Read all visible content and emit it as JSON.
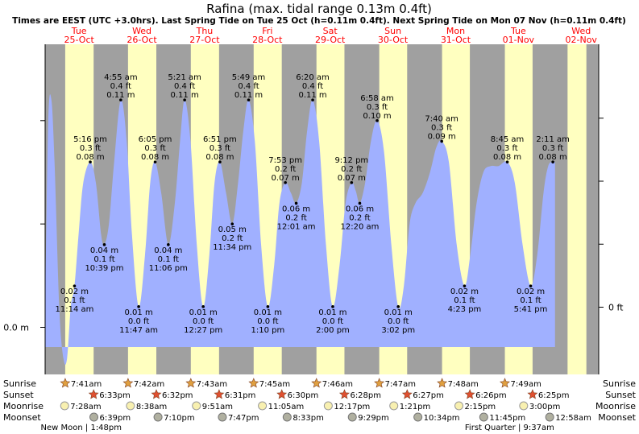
{
  "title": "Rafina (max. tidal range 0.13m 0.4ft)",
  "subtitle": "Times are EEST (UTC +3.0hrs). Last Spring Tide on Tue 25 Oct (h=0.11m 0.4ft). Next Spring Tide on Mon 07 Nov (h=0.11m 0.4ft)",
  "colors": {
    "day": "#ffffc0",
    "night": "#a0a0a0",
    "water": "#a0b0ff",
    "date": "#ff0000",
    "sun": "#e0a040",
    "sunset": "#e05030",
    "moon": "#f8f0b0",
    "moonset": "#b0b0a0"
  },
  "days": [
    {
      "dow": "Tue",
      "date": "25-Oct"
    },
    {
      "dow": "Wed",
      "date": "26-Oct"
    },
    {
      "dow": "Thu",
      "date": "27-Oct"
    },
    {
      "dow": "Fri",
      "date": "28-Oct"
    },
    {
      "dow": "Sat",
      "date": "29-Oct"
    },
    {
      "dow": "Sun",
      "date": "30-Oct"
    },
    {
      "dow": "Mon",
      "date": "31-Oct"
    },
    {
      "dow": "Tue",
      "date": "01-Nov"
    },
    {
      "dow": "Wed",
      "date": "02-Nov"
    }
  ],
  "axis": {
    "left_label": "0.0 m",
    "right_label": "0 ft"
  },
  "chart_data": {
    "type": "area",
    "title": "Rafina (max. tidal range 0.13m 0.4ft)",
    "x_unit": "hours since 00:00 Tue 25 Oct (EEST)",
    "y_unit": "m",
    "ylim": [
      -0.015,
      0.13
    ],
    "extremes": [
      {
        "t": 11.23,
        "type": "low",
        "time": "11:14 am",
        "m": "0.02 m",
        "ft": "0.1 ft",
        "h": 0.02
      },
      {
        "t": 17.27,
        "type": "high",
        "time": "5:16 pm",
        "m": "0.08 m",
        "ft": "0.3 ft",
        "h": 0.08
      },
      {
        "t": 22.65,
        "type": "low",
        "time": "10:39 pm",
        "m": "0.04 m",
        "ft": "0.1 ft",
        "h": 0.04
      },
      {
        "t": 28.92,
        "type": "high",
        "time": "4:55 am",
        "m": "0.11 m",
        "ft": "0.4 ft",
        "h": 0.11
      },
      {
        "t": 35.78,
        "type": "low",
        "time": "11:47 am",
        "m": "0.01 m",
        "ft": "0.0 ft",
        "h": 0.01
      },
      {
        "t": 42.08,
        "type": "high",
        "time": "6:05 pm",
        "m": "0.08 m",
        "ft": "0.3 ft",
        "h": 0.08
      },
      {
        "t": 47.1,
        "type": "low",
        "time": "11:06 pm",
        "m": "0.04 m",
        "ft": "0.1 ft",
        "h": 0.04
      },
      {
        "t": 53.35,
        "type": "high",
        "time": "5:21 am",
        "m": "0.11 m",
        "ft": "0.4 ft",
        "h": 0.11
      },
      {
        "t": 60.45,
        "type": "low",
        "time": "12:27 pm",
        "m": "0.01 m",
        "ft": "0.0 ft",
        "h": 0.01
      },
      {
        "t": 66.85,
        "type": "high",
        "time": "6:51 pm",
        "m": "0.08 m",
        "ft": "0.3 ft",
        "h": 0.08
      },
      {
        "t": 71.57,
        "type": "low",
        "time": "11:34 pm",
        "m": "0.05 m",
        "ft": "0.2 ft",
        "h": 0.05
      },
      {
        "t": 77.82,
        "type": "high",
        "time": "5:49 am",
        "m": "0.11 m",
        "ft": "0.4 ft",
        "h": 0.11
      },
      {
        "t": 85.17,
        "type": "low",
        "time": "1:10 pm",
        "m": "0.01 m",
        "ft": "0.0 ft",
        "h": 0.01
      },
      {
        "t": 91.88,
        "type": "high",
        "time": "7:53 pm",
        "m": "0.07 m",
        "ft": "0.2 ft",
        "h": 0.07
      },
      {
        "t": 96.02,
        "type": "low",
        "time": "12:01 am",
        "m": "0.06 m",
        "ft": "0.2 ft",
        "h": 0.06
      },
      {
        "t": 102.33,
        "type": "high",
        "time": "6:20 am",
        "m": "0.11 m",
        "ft": "0.4 ft",
        "h": 0.11
      },
      {
        "t": 110.0,
        "type": "low",
        "time": "2:00 pm",
        "m": "0.01 m",
        "ft": "0.0 ft",
        "h": 0.01
      },
      {
        "t": 117.2,
        "type": "high",
        "time": "9:12 pm",
        "m": "0.07 m",
        "ft": "0.2 ft",
        "h": 0.07
      },
      {
        "t": 120.33,
        "type": "low",
        "time": "12:20 am",
        "m": "0.06 m",
        "ft": "0.2 ft",
        "h": 0.06
      },
      {
        "t": 126.97,
        "type": "high",
        "time": "6:58 am",
        "m": "0.10 m",
        "ft": "0.3 ft",
        "h": 0.1
      },
      {
        "t": 135.05,
        "type": "low",
        "time": "3:02 pm",
        "m": "0.01 m",
        "ft": "0.0 ft",
        "h": 0.01
      },
      {
        "t": 151.67,
        "type": "high",
        "time": "7:40 am",
        "m": "0.09 m",
        "ft": "0.3 ft",
        "h": 0.09
      },
      {
        "t": 160.38,
        "type": "low",
        "time": "4:23 pm",
        "m": "0.02 m",
        "ft": "0.1 ft",
        "h": 0.02
      },
      {
        "t": 176.75,
        "type": "high",
        "time": "8:45 am",
        "m": "0.08 m",
        "ft": "0.3 ft",
        "h": 0.08
      },
      {
        "t": 185.68,
        "type": "low",
        "time": "5:41 pm",
        "m": "0.02 m",
        "ft": "0.1 ft",
        "h": 0.02
      },
      {
        "t": 194.18,
        "type": "high",
        "time": "2:11 am",
        "m": "0.08 m",
        "ft": "0.3 ft",
        "h": 0.08
      }
    ],
    "curve": [
      [
        0,
        0.01
      ],
      [
        1.2,
        0.1
      ],
      [
        2.4,
        0.11
      ],
      [
        3.6,
        0.08
      ],
      [
        5.4,
        0.01
      ],
      [
        7.0,
        -0.015
      ],
      [
        8.4,
        -0.015
      ],
      [
        9.8,
        0.01
      ],
      [
        11.23,
        0.02
      ],
      [
        12.8,
        0.045
      ],
      [
        14.6,
        0.07
      ],
      [
        17.27,
        0.08
      ],
      [
        19.4,
        0.07
      ],
      [
        21.4,
        0.045
      ],
      [
        22.65,
        0.04
      ],
      [
        24.4,
        0.05
      ],
      [
        26.4,
        0.08
      ],
      [
        28.92,
        0.11
      ],
      [
        31.2,
        0.09
      ],
      [
        33.2,
        0.045
      ],
      [
        35.78,
        0.01
      ],
      [
        38.2,
        0.035
      ],
      [
        40.2,
        0.07
      ],
      [
        42.08,
        0.08
      ],
      [
        44.4,
        0.065
      ],
      [
        47.1,
        0.04
      ],
      [
        49.6,
        0.06
      ],
      [
        51.6,
        0.09
      ],
      [
        53.35,
        0.11
      ],
      [
        55.6,
        0.09
      ],
      [
        58.0,
        0.04
      ],
      [
        60.45,
        0.01
      ],
      [
        62.8,
        0.035
      ],
      [
        64.8,
        0.07
      ],
      [
        66.85,
        0.08
      ],
      [
        69.2,
        0.065
      ],
      [
        71.57,
        0.05
      ],
      [
        73.8,
        0.07
      ],
      [
        75.8,
        0.095
      ],
      [
        77.82,
        0.11
      ],
      [
        80.2,
        0.09
      ],
      [
        82.6,
        0.04
      ],
      [
        85.17,
        0.01
      ],
      [
        87.6,
        0.03
      ],
      [
        89.6,
        0.06
      ],
      [
        91.88,
        0.07
      ],
      [
        94.0,
        0.065
      ],
      [
        96.02,
        0.06
      ],
      [
        98.2,
        0.07
      ],
      [
        100.2,
        0.095
      ],
      [
        102.33,
        0.11
      ],
      [
        104.8,
        0.09
      ],
      [
        107.4,
        0.04
      ],
      [
        110.0,
        0.01
      ],
      [
        112.6,
        0.03
      ],
      [
        114.9,
        0.06
      ],
      [
        117.2,
        0.07
      ],
      [
        118.8,
        0.066
      ],
      [
        120.33,
        0.06
      ],
      [
        122.4,
        0.07
      ],
      [
        124.6,
        0.09
      ],
      [
        126.97,
        0.1
      ],
      [
        129.6,
        0.085
      ],
      [
        132.4,
        0.04
      ],
      [
        135.05,
        0.01
      ],
      [
        137.2,
        0.02
      ],
      [
        139.4,
        0.05
      ],
      [
        141.6,
        0.06
      ],
      [
        144.4,
        0.065
      ],
      [
        147.2,
        0.075
      ],
      [
        149.6,
        0.087
      ],
      [
        151.67,
        0.09
      ],
      [
        154.4,
        0.08
      ],
      [
        157.4,
        0.04
      ],
      [
        160.38,
        0.02
      ],
      [
        162.6,
        0.035
      ],
      [
        165.0,
        0.06
      ],
      [
        167.6,
        0.075
      ],
      [
        170.4,
        0.078
      ],
      [
        173.4,
        0.078
      ],
      [
        176.75,
        0.08
      ],
      [
        179.6,
        0.07
      ],
      [
        182.6,
        0.04
      ],
      [
        185.68,
        0.02
      ],
      [
        188.2,
        0.035
      ],
      [
        190.6,
        0.065
      ],
      [
        192.4,
        0.078
      ],
      [
        194.18,
        0.08
      ],
      [
        195.0,
        0.08
      ]
    ],
    "day_hours": [
      [
        7.68,
        18.55
      ],
      [
        31.7,
        42.53
      ],
      [
        55.72,
        66.52
      ],
      [
        79.75,
        90.5
      ],
      [
        103.77,
        114.47
      ],
      [
        127.78,
        138.45
      ],
      [
        151.8,
        162.43
      ],
      [
        175.82,
        186.42
      ],
      [
        199.8,
        207
      ]
    ]
  },
  "astro": {
    "labels": {
      "sunrise": "Sunrise",
      "sunset": "Sunset",
      "moonrise": "Moonrise",
      "moonset": "Moonset"
    },
    "sunrise": [
      {
        "t": 7.68,
        "text": "7:41am"
      },
      {
        "t": 31.7,
        "text": "7:42am"
      },
      {
        "t": 55.72,
        "text": "7:43am"
      },
      {
        "t": 79.75,
        "text": "7:45am"
      },
      {
        "t": 103.77,
        "text": "7:46am"
      },
      {
        "t": 127.78,
        "text": "7:47am"
      },
      {
        "t": 151.8,
        "text": "7:48am"
      },
      {
        "t": 175.82,
        "text": "7:49am"
      }
    ],
    "sunset": [
      {
        "t": 18.55,
        "text": "6:33pm"
      },
      {
        "t": 42.53,
        "text": "6:32pm"
      },
      {
        "t": 66.52,
        "text": "6:31pm"
      },
      {
        "t": 90.5,
        "text": "6:30pm"
      },
      {
        "t": 114.47,
        "text": "6:28pm"
      },
      {
        "t": 138.45,
        "text": "6:27pm"
      },
      {
        "t": 162.43,
        "text": "6:26pm"
      },
      {
        "t": 186.42,
        "text": "6:25pm"
      }
    ],
    "moonrise": [
      {
        "t": 7.47,
        "text": "7:28am"
      },
      {
        "t": 32.63,
        "text": "8:38am"
      },
      {
        "t": 57.85,
        "text": "9:51am"
      },
      {
        "t": 83.08,
        "text": "11:05am"
      },
      {
        "t": 108.28,
        "text": "12:17pm"
      },
      {
        "t": 133.35,
        "text": "1:21pm"
      },
      {
        "t": 158.25,
        "text": "2:15pm"
      },
      {
        "t": 183.0,
        "text": "3:00pm"
      }
    ],
    "moonset": [
      {
        "t": 18.65,
        "text": "6:39pm"
      },
      {
        "t": 43.17,
        "text": "7:10pm"
      },
      {
        "t": 67.78,
        "text": "7:47pm"
      },
      {
        "t": 92.55,
        "text": "8:33pm"
      },
      {
        "t": 117.48,
        "text": "9:29pm"
      },
      {
        "t": 142.57,
        "text": "10:34pm"
      },
      {
        "t": 167.75,
        "text": "11:45pm"
      },
      {
        "t": 192.97,
        "text": "12:58am"
      }
    ],
    "moon_phases": [
      {
        "t": 13.8,
        "text": "New Moon | 1:48pm"
      },
      {
        "t": 177.62,
        "text": "First Quarter | 9:37am"
      }
    ]
  }
}
